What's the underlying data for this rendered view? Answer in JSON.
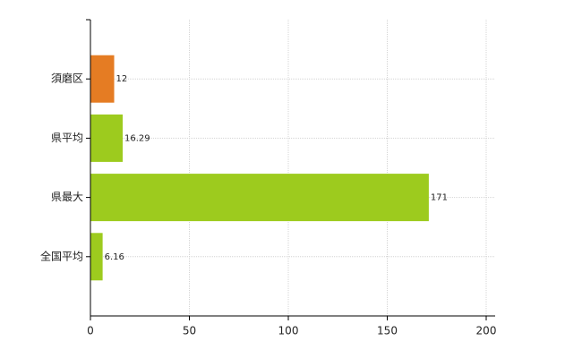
{
  "chart_data": {
    "type": "hbar",
    "categories": [
      "須磨区",
      "県平均",
      "県最大",
      "全国平均"
    ],
    "values": [
      12,
      16.29,
      171,
      6.16
    ],
    "colors": [
      "#e57c23",
      "#9dcb1e",
      "#9dcb1e",
      "#9dcb1e"
    ],
    "xlim": [
      0,
      200
    ],
    "xticks": [
      0,
      50,
      100,
      150,
      200
    ],
    "grid": true
  }
}
